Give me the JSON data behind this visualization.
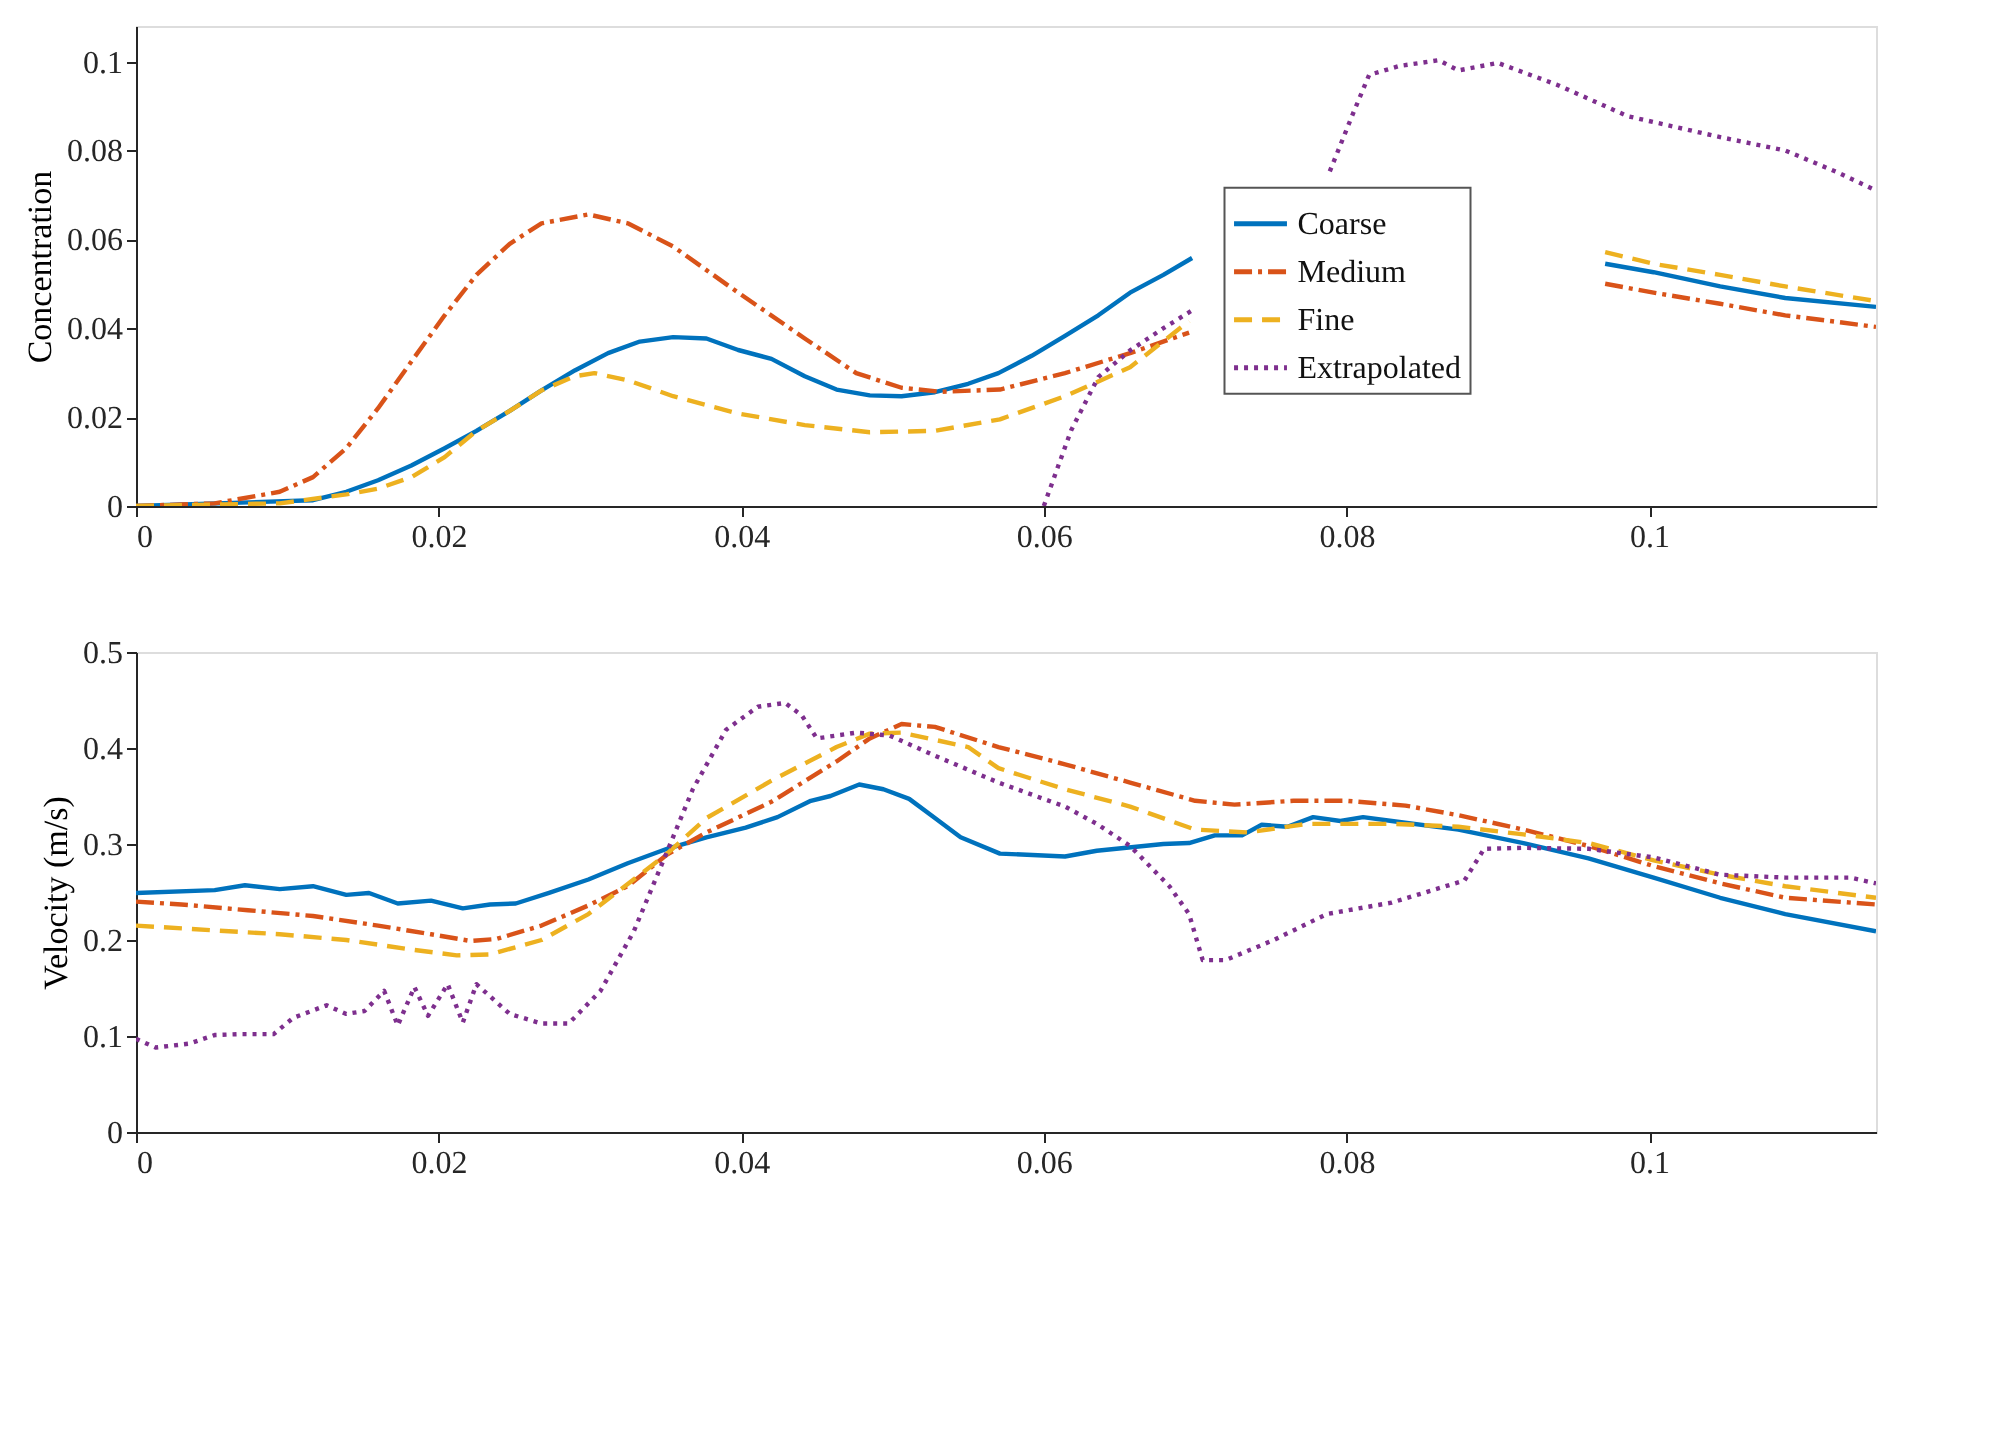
{
  "chart_data": [
    {
      "type": "line",
      "ylabel": "Concentration",
      "xlim": [
        0,
        0.115
      ],
      "ylim": [
        0,
        0.108
      ],
      "xticks": [
        0,
        0.02,
        0.04,
        0.06,
        0.08,
        0.1
      ],
      "yticks": [
        0,
        0.02,
        0.04,
        0.06,
        0.08,
        0.1
      ],
      "grid": false,
      "legend": "right",
      "series": [
        {
          "name": "Coarse",
          "color": "#0072bd",
          "line_style": "solid",
          "x": [
            0,
            0.0117,
            0.0139,
            0.016,
            0.0182,
            0.0204,
            0.0225,
            0.0247,
            0.0268,
            0.029,
            0.0312,
            0.0333,
            0.0355,
            0.0377,
            0.0398,
            0.042,
            0.0442,
            0.0463,
            0.0485,
            0.0506,
            0.0528,
            0.055,
            0.057,
            0.0592,
            0.0614,
            0.0636,
            0.0657,
            0.0679,
            0.0698,
            0.083,
            0.0971,
            0.1003,
            0.1047,
            0.109,
            0.115
          ],
          "values": [
            0,
            0.0013,
            0.0032,
            0.0058,
            0.0091,
            0.013,
            0.0169,
            0.0214,
            0.026,
            0.0305,
            0.0344,
            0.037,
            0.038,
            0.0377,
            0.0351,
            0.0331,
            0.0292,
            0.0262,
            0.0249,
            0.0247,
            0.0256,
            0.0275,
            0.0299,
            0.0338,
            0.0383,
            0.0429,
            0.048,
            0.052,
            0.0558,
            null,
            0.0545,
            0.0526,
            0.0494,
            0.0468,
            0.0448
          ]
        },
        {
          "name": "Medium",
          "color": "#d95319",
          "line_style": "dashdot",
          "x": [
            0,
            0.0052,
            0.0095,
            0.0117,
            0.0139,
            0.016,
            0.0182,
            0.0204,
            0.0225,
            0.0247,
            0.0268,
            0.0299,
            0.0325,
            0.0355,
            0.0398,
            0.0442,
            0.0476,
            0.0506,
            0.0532,
            0.0571,
            0.0614,
            0.0657,
            0.0696,
            0.083,
            0.0971,
            0.1003,
            0.1047,
            0.109,
            0.115
          ],
          "values": [
            0,
            0.0006,
            0.0032,
            0.0065,
            0.013,
            0.022,
            0.0325,
            0.0429,
            0.052,
            0.059,
            0.0636,
            0.0656,
            0.0636,
            0.0584,
            0.048,
            0.0377,
            0.0299,
            0.0266,
            0.0257,
            0.0262,
            0.0299,
            0.0344,
            0.039,
            null,
            0.05,
            0.048,
            0.0455,
            0.0429,
            0.0403
          ]
        },
        {
          "name": "Fine",
          "color": "#edb120",
          "line_style": "dashed",
          "x": [
            0,
            0.0095,
            0.0139,
            0.016,
            0.0182,
            0.0204,
            0.0225,
            0.0247,
            0.0268,
            0.029,
            0.0303,
            0.0325,
            0.0355,
            0.0398,
            0.0442,
            0.0485,
            0.0528,
            0.0571,
            0.0614,
            0.0657,
            0.0696,
            0.083,
            0.0971,
            0.1003,
            0.1047,
            0.109,
            0.115
          ],
          "values": [
            0,
            0.0006,
            0.0026,
            0.0039,
            0.0065,
            0.011,
            0.0169,
            0.0214,
            0.026,
            0.0292,
            0.0299,
            0.0283,
            0.0247,
            0.0208,
            0.0182,
            0.0166,
            0.0169,
            0.0195,
            0.0247,
            0.0312,
            0.0416,
            null,
            0.0571,
            0.0545,
            0.052,
            0.0494,
            0.0461
          ]
        },
        {
          "name": "Extrapolated",
          "color": "#7e2f8e",
          "line_style": "dotted",
          "x": [
            0.06,
            0.0618,
            0.0636,
            0.0657,
            0.0679,
            0.0698,
            0.075,
            0.0789,
            0.0804,
            0.0815,
            0.0835,
            0.0861,
            0.0874,
            0.09,
            0.0939,
            0.0986,
            0.1047,
            0.109,
            0.1125,
            0.115
          ],
          "values": [
            0,
            0.017,
            0.029,
            0.035,
            0.04,
            0.044,
            null,
            0.0753,
            0.088,
            0.097,
            0.099,
            0.1003,
            0.098,
            0.0997,
            0.0948,
            0.0877,
            0.083,
            0.08,
            0.075,
            0.071
          ]
        }
      ]
    },
    {
      "type": "line",
      "ylabel": "Velocity (m/s)",
      "xlim": [
        0,
        0.115
      ],
      "ylim": [
        0,
        0.5
      ],
      "xticks": [
        0,
        0.02,
        0.04,
        0.06,
        0.08,
        0.1
      ],
      "yticks": [
        0,
        0.1,
        0.2,
        0.3,
        0.4,
        0.5
      ],
      "grid": false,
      "legend": false,
      "series": [
        {
          "color": "#0072bd",
          "line_style": "solid",
          "x": [
            0,
            0.0052,
            0.0072,
            0.0095,
            0.0117,
            0.0139,
            0.0154,
            0.0173,
            0.0195,
            0.0216,
            0.0234,
            0.0251,
            0.0273,
            0.0299,
            0.0325,
            0.0351,
            0.0377,
            0.0403,
            0.0424,
            0.0446,
            0.0459,
            0.0478,
            0.0494,
            0.0511,
            0.0528,
            0.0545,
            0.0571,
            0.0614,
            0.0635,
            0.0679,
            0.0696,
            0.0713,
            0.0731,
            0.0744,
            0.0761,
            0.0778,
            0.0796,
            0.0811,
            0.083,
            0.0874,
            0.0917,
            0.096,
            0.1003,
            0.1047,
            0.109,
            0.115
          ],
          "values": [
            0.249,
            0.252,
            0.257,
            0.253,
            0.256,
            0.247,
            0.249,
            0.238,
            0.241,
            0.233,
            0.237,
            0.238,
            0.249,
            0.263,
            0.28,
            0.295,
            0.307,
            0.317,
            0.328,
            0.345,
            0.35,
            0.362,
            0.357,
            0.347,
            0.327,
            0.307,
            0.29,
            0.287,
            0.293,
            0.3,
            0.301,
            0.309,
            0.309,
            0.32,
            0.318,
            0.328,
            0.324,
            0.328,
            0.324,
            0.315,
            0.301,
            0.285,
            0.265,
            0.244,
            0.227,
            0.209
          ]
        },
        {
          "color": "#d95319",
          "line_style": "dashdot",
          "x": [
            0,
            0.003,
            0.0074,
            0.0117,
            0.016,
            0.0195,
            0.0221,
            0.0238,
            0.0268,
            0.0299,
            0.0325,
            0.0351,
            0.0377,
            0.042,
            0.0463,
            0.0485,
            0.0506,
            0.0528,
            0.057,
            0.0614,
            0.0657,
            0.07,
            0.0726,
            0.0765,
            0.08,
            0.0839,
            0.0874,
            0.0917,
            0.096,
            0.1003,
            0.1047,
            0.109,
            0.115
          ],
          "values": [
            0.24,
            0.237,
            0.231,
            0.225,
            0.215,
            0.206,
            0.199,
            0.201,
            0.215,
            0.236,
            0.256,
            0.289,
            0.312,
            0.344,
            0.386,
            0.41,
            0.425,
            0.422,
            0.401,
            0.383,
            0.364,
            0.345,
            0.341,
            0.345,
            0.345,
            0.34,
            0.33,
            0.315,
            0.298,
            0.277,
            0.259,
            0.244,
            0.237
          ]
        },
        {
          "color": "#edb120",
          "line_style": "dashed",
          "x": [
            0,
            0.0052,
            0.0095,
            0.0139,
            0.0182,
            0.0212,
            0.0234,
            0.0268,
            0.0299,
            0.0333,
            0.0351,
            0.0377,
            0.042,
            0.0463,
            0.0485,
            0.0506,
            0.055,
            0.057,
            0.0614,
            0.0657,
            0.07,
            0.0735,
            0.0774,
            0.083,
            0.0874,
            0.0917,
            0.096,
            0.1003,
            0.1047,
            0.109,
            0.115
          ],
          "values": [
            0.215,
            0.21,
            0.206,
            0.2,
            0.19,
            0.184,
            0.185,
            0.2,
            0.227,
            0.268,
            0.29,
            0.327,
            0.366,
            0.401,
            0.415,
            0.416,
            0.401,
            0.379,
            0.357,
            0.339,
            0.315,
            0.312,
            0.321,
            0.321,
            0.318,
            0.31,
            0.301,
            0.283,
            0.268,
            0.256,
            0.244
          ]
        },
        {
          "color": "#7e2f8e",
          "line_style": "dotted",
          "x": [
            0,
            0.0013,
            0.0035,
            0.0052,
            0.0069,
            0.0091,
            0.0104,
            0.0126,
            0.0139,
            0.0151,
            0.0164,
            0.0173,
            0.0184,
            0.0193,
            0.0206,
            0.0216,
            0.0225,
            0.0247,
            0.0268,
            0.0286,
            0.0307,
            0.0329,
            0.0351,
            0.0368,
            0.039,
            0.0411,
            0.0429,
            0.044,
            0.045,
            0.0476,
            0.0498,
            0.0528,
            0.057,
            0.0614,
            0.0635,
            0.0657,
            0.0683,
            0.0696,
            0.0705,
            0.072,
            0.0752,
            0.0787,
            0.083,
            0.0878,
            0.0891,
            0.0917,
            0.096,
            0.1003,
            0.1047,
            0.109,
            0.1133,
            0.115
          ],
          "values": [
            0.097,
            0.088,
            0.092,
            0.101,
            0.102,
            0.102,
            0.119,
            0.132,
            0.123,
            0.126,
            0.147,
            0.111,
            0.151,
            0.121,
            0.154,
            0.114,
            0.154,
            0.123,
            0.113,
            0.113,
            0.147,
            0.209,
            0.292,
            0.357,
            0.419,
            0.443,
            0.447,
            0.434,
            0.41,
            0.416,
            0.413,
            0.392,
            0.364,
            0.339,
            0.321,
            0.298,
            0.256,
            0.227,
            0.179,
            0.179,
            0.2,
            0.227,
            0.239,
            0.262,
            0.295,
            0.296,
            0.295,
            0.286,
            0.268,
            0.265,
            0.265,
            0.259
          ]
        }
      ]
    }
  ]
}
